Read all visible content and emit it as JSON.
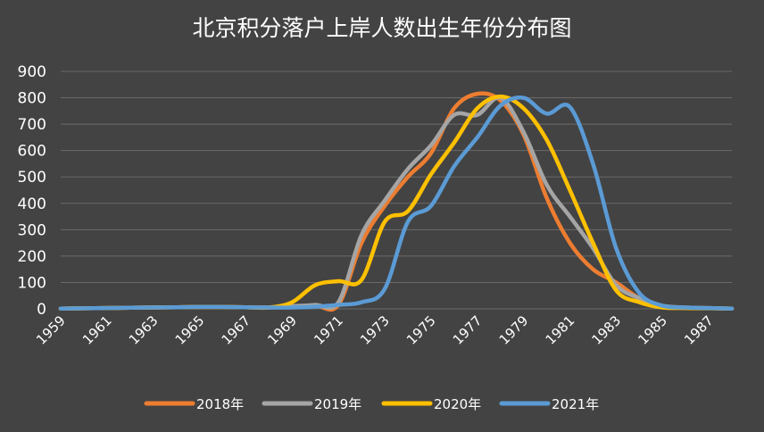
{
  "chart_data": {
    "type": "line",
    "title": "北京积分落户上岸人数出生年份分布图",
    "xlabel": "",
    "ylabel": "",
    "ylim": [
      0,
      900
    ],
    "yticks": [
      "0",
      "100",
      "200",
      "300",
      "400",
      "500",
      "600",
      "700",
      "800",
      "900"
    ],
    "xlim": [
      1959,
      1988
    ],
    "xticks": [
      "1959",
      "1961",
      "1963",
      "1965",
      "1967",
      "1969",
      "1971",
      "1973",
      "1975",
      "1977",
      "1979",
      "1981",
      "1983",
      "1985",
      "1987"
    ],
    "grid": true,
    "legend_position": "bottom",
    "series": [
      {
        "name": "2018年",
        "color": "#ED7D31",
        "x": [
          1959,
          1960,
          1961,
          1962,
          1963,
          1964,
          1965,
          1966,
          1967,
          1968,
          1969,
          1970,
          1971,
          1972,
          1973,
          1974,
          1975,
          1976,
          1977,
          1978,
          1979,
          1980,
          1981,
          1982,
          1983,
          1984,
          1985,
          1986,
          1987,
          1988
        ],
        "y": [
          1,
          2,
          3,
          4,
          5,
          6,
          7,
          7,
          6,
          5,
          8,
          12,
          15,
          250,
          390,
          500,
          590,
          760,
          815,
          790,
          660,
          420,
          250,
          150,
          100,
          40,
          10,
          5,
          3,
          1
        ]
      },
      {
        "name": "2019年",
        "color": "#A5A5A5",
        "x": [
          1959,
          1960,
          1961,
          1962,
          1963,
          1964,
          1965,
          1966,
          1967,
          1968,
          1969,
          1970,
          1971,
          1972,
          1973,
          1974,
          1975,
          1976,
          1977,
          1978,
          1979,
          1980,
          1981,
          1982,
          1983,
          1984,
          1985,
          1986,
          1987,
          1988
        ],
        "y": [
          1,
          2,
          3,
          4,
          5,
          6,
          7,
          7,
          6,
          5,
          10,
          15,
          25,
          280,
          410,
          530,
          620,
          735,
          735,
          800,
          670,
          470,
          350,
          230,
          90,
          40,
          12,
          5,
          3,
          1
        ]
      },
      {
        "name": "2020年",
        "color": "#FFC000",
        "x": [
          1959,
          1960,
          1961,
          1962,
          1963,
          1964,
          1965,
          1966,
          1967,
          1968,
          1969,
          1970,
          1971,
          1972,
          1973,
          1974,
          1975,
          1976,
          1977,
          1978,
          1979,
          1980,
          1981,
          1982,
          1983,
          1984,
          1985,
          1986,
          1987,
          1988
        ],
        "y": [
          1,
          2,
          3,
          4,
          5,
          6,
          7,
          7,
          6,
          5,
          25,
          90,
          105,
          110,
          330,
          370,
          510,
          630,
          760,
          805,
          760,
          640,
          450,
          250,
          70,
          25,
          5,
          3,
          2,
          1
        ]
      },
      {
        "name": "2021年",
        "color": "#5B9BD5",
        "x": [
          1959,
          1960,
          1961,
          1962,
          1963,
          1964,
          1965,
          1966,
          1967,
          1968,
          1969,
          1970,
          1971,
          1972,
          1973,
          1974,
          1975,
          1976,
          1977,
          1978,
          1979,
          1980,
          1981,
          1982,
          1983,
          1984,
          1985,
          1986,
          1987,
          1988
        ],
        "y": [
          1,
          2,
          3,
          4,
          5,
          6,
          7,
          7,
          6,
          5,
          5,
          8,
          15,
          25,
          75,
          330,
          390,
          540,
          650,
          770,
          800,
          740,
          765,
          550,
          230,
          60,
          12,
          5,
          3,
          1
        ]
      }
    ]
  }
}
